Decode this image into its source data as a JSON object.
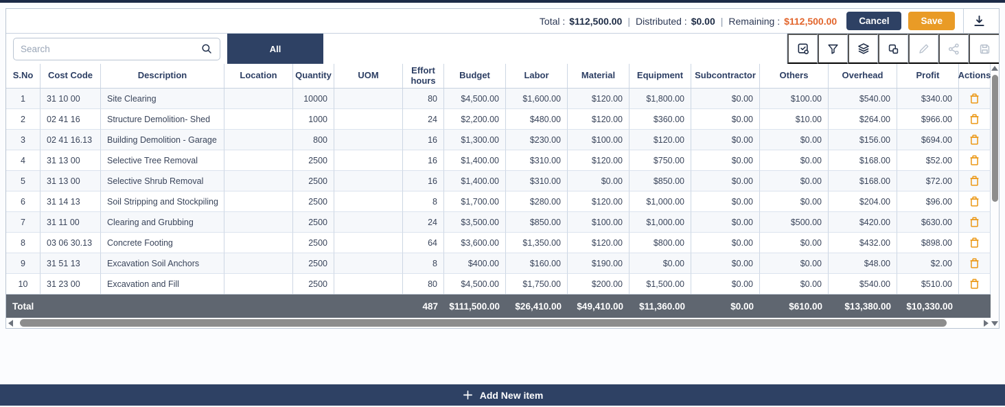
{
  "topbar": {
    "total_label": "Total :",
    "total_value": "$112,500.00",
    "distributed_label": "Distributed :",
    "distributed_value": "$0.00",
    "remaining_label": "Remaining :",
    "remaining_value": "$112,500.00",
    "cancel_label": "Cancel",
    "save_label": "Save"
  },
  "filterbar": {
    "search_placeholder": "Search",
    "tab_all_label": "All",
    "toolbar_icons": [
      "check-square-icon",
      "filter-icon",
      "layers-icon",
      "copy-icon",
      "edit-pencil-icon",
      "share-icon",
      "save-disk-icon"
    ]
  },
  "table": {
    "columns": [
      "S.No",
      "Cost Code",
      "Description",
      "Location",
      "Quantity",
      "UOM",
      "Effort hours",
      "Budget",
      "Labor",
      "Material",
      "Equipment",
      "Subcontractor",
      "Others",
      "Overhead",
      "Profit",
      "Actions"
    ],
    "rows": [
      [
        "1",
        "31 10 00",
        "Site Clearing",
        "",
        "10000",
        "",
        "80",
        "$4,500.00",
        "$1,600.00",
        "$120.00",
        "$1,800.00",
        "$0.00",
        "$100.00",
        "$540.00",
        "$340.00"
      ],
      [
        "2",
        "02 41 16",
        "Structure Demolition- Shed",
        "",
        "1000",
        "",
        "24",
        "$2,200.00",
        "$480.00",
        "$120.00",
        "$360.00",
        "$0.00",
        "$10.00",
        "$264.00",
        "$966.00"
      ],
      [
        "3",
        "02 41 16.13",
        "Building Demolition - Garage",
        "",
        "800",
        "",
        "16",
        "$1,300.00",
        "$230.00",
        "$100.00",
        "$120.00",
        "$0.00",
        "$0.00",
        "$156.00",
        "$694.00"
      ],
      [
        "4",
        "31 13 00",
        "Selective Tree Removal",
        "",
        "2500",
        "",
        "16",
        "$1,400.00",
        "$310.00",
        "$120.00",
        "$750.00",
        "$0.00",
        "$0.00",
        "$168.00",
        "$52.00"
      ],
      [
        "5",
        "31 13 00",
        "Selective Shrub Removal",
        "",
        "2500",
        "",
        "16",
        "$1,400.00",
        "$310.00",
        "$0.00",
        "$850.00",
        "$0.00",
        "$0.00",
        "$168.00",
        "$72.00"
      ],
      [
        "6",
        "31 14 13",
        "Soil Stripping and Stockpiling",
        "",
        "2500",
        "",
        "8",
        "$1,700.00",
        "$280.00",
        "$120.00",
        "$1,000.00",
        "$0.00",
        "$0.00",
        "$204.00",
        "$96.00"
      ],
      [
        "7",
        "31 11 00",
        "Clearing and Grubbing",
        "",
        "2500",
        "",
        "24",
        "$3,500.00",
        "$850.00",
        "$100.00",
        "$1,000.00",
        "$0.00",
        "$500.00",
        "$420.00",
        "$630.00"
      ],
      [
        "8",
        "03 06 30.13",
        "Concrete Footing",
        "",
        "2500",
        "",
        "64",
        "$3,600.00",
        "$1,350.00",
        "$120.00",
        "$800.00",
        "$0.00",
        "$0.00",
        "$432.00",
        "$898.00"
      ],
      [
        "9",
        "31 51 13",
        "Excavation Soil Anchors",
        "",
        "2500",
        "",
        "8",
        "$400.00",
        "$160.00",
        "$190.00",
        "$0.00",
        "$0.00",
        "$0.00",
        "$48.00",
        "$2.00"
      ],
      [
        "10",
        "31 23 00",
        "Excavation and Fill",
        "",
        "2500",
        "",
        "80",
        "$4,500.00",
        "$1,750.00",
        "$200.00",
        "$1,500.00",
        "$0.00",
        "$0.00",
        "$540.00",
        "$510.00"
      ]
    ],
    "total": {
      "label": "Total",
      "effort_hours": "487",
      "values": [
        "$111,500.00",
        "$26,410.00",
        "$49,410.00",
        "$11,360.00",
        "$0.00",
        "$610.00",
        "$13,380.00",
        "$10,330.00"
      ]
    }
  },
  "footer": {
    "add_label": "Add New item"
  },
  "colors": {
    "accent_navy": "#2e4164",
    "save_orange": "#e99b26",
    "remaining_orange": "#e2652c",
    "trash_orange": "#eb9714",
    "total_row_bg": "#5f6670"
  }
}
